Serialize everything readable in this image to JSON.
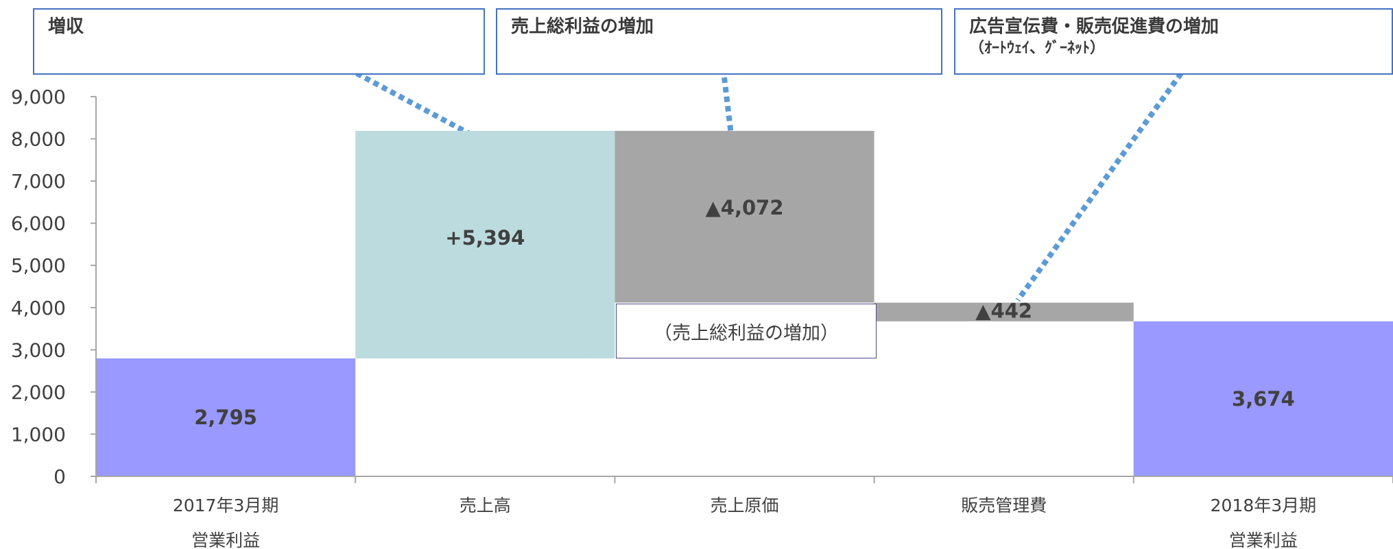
{
  "callouts": {
    "revenue_up": {
      "title": "増収"
    },
    "gross_profit_up": {
      "title": "売上総利益の増加"
    },
    "ad_cost_up": {
      "title": "広告宣伝費・販売促進費の増加",
      "subtitle": "（ｵｰﾄｳｪｲ、ｸﾞｰﾈｯﾄ）"
    }
  },
  "gross_profit_box": "（売上総利益の増加）",
  "chart_data": {
    "type": "bar",
    "subtype": "waterfall",
    "categories": [
      [
        "2017年3月期",
        "営業利益"
      ],
      [
        "売上高"
      ],
      [
        "売上原価"
      ],
      [
        "販売管理費"
      ],
      [
        "2018年3月期",
        "営業利益"
      ]
    ],
    "steps": [
      {
        "kind": "total",
        "value": 2795,
        "label": "2,795",
        "color": "#9999ff"
      },
      {
        "kind": "increase",
        "value": 5394,
        "label": "+5,394",
        "color": "#bcdbde"
      },
      {
        "kind": "decrease",
        "value": -4072,
        "label": "▲4,072",
        "color": "#a6a6a6"
      },
      {
        "kind": "decrease",
        "value": -442,
        "label": "▲442",
        "color": "#a6a6a6"
      },
      {
        "kind": "total",
        "value": 3674,
        "label": "3,674",
        "color": "#9999ff"
      }
    ],
    "ylim": [
      0,
      9000
    ],
    "yticks": [
      0,
      1000,
      2000,
      3000,
      4000,
      5000,
      6000,
      7000,
      8000,
      9000
    ],
    "ytick_labels": [
      "0",
      "1,000",
      "2,000",
      "3,000",
      "4,000",
      "5,000",
      "6,000",
      "7,000",
      "8,000",
      "9,000"
    ],
    "grid": false,
    "legend": "none",
    "axis_color": "#a6a6a6",
    "label_color": "#404040",
    "leader_color": "#5b9bd5"
  }
}
